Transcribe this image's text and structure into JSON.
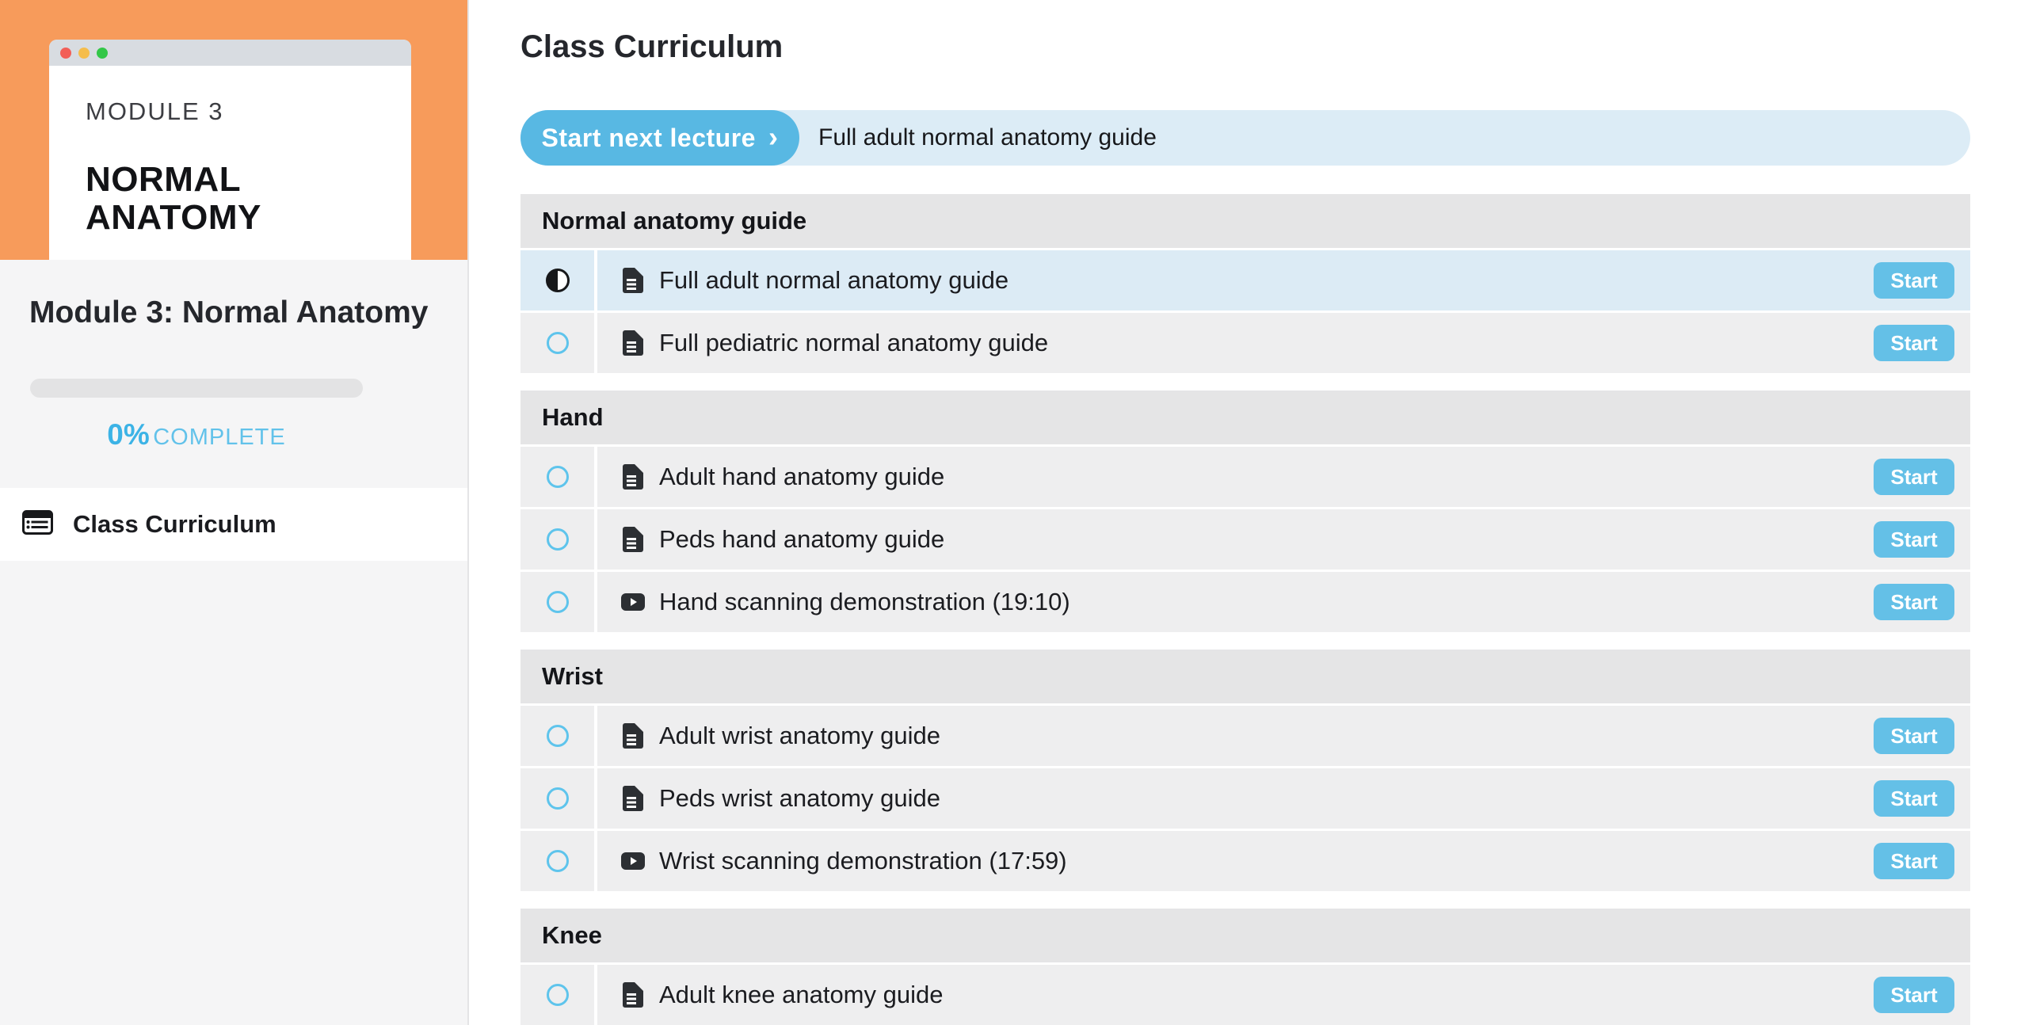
{
  "colors": {
    "sidebar_orange": "#f79b5b",
    "accent_blue": "#58b8e3",
    "start_button_blue": "#64c0e7",
    "banner_blue": "#dcecf6",
    "selected_row_blue": "#dcebf5"
  },
  "sidebar": {
    "card": {
      "eyebrow": "MODULE 3",
      "title_lines": [
        "NORMAL",
        "ANATOMY"
      ]
    },
    "module_title": "Module 3: Normal Anatomy",
    "progress": {
      "percent": "0%",
      "label": "COMPLETE",
      "value": 0
    },
    "nav": {
      "curriculum_label": "Class Curriculum"
    }
  },
  "main": {
    "title": "Class Curriculum",
    "next_lecture": {
      "button_label": "Start next lecture",
      "chevron": "›",
      "lecture_title": "Full adult normal anatomy guide"
    },
    "start_label": "Start",
    "sections": [
      {
        "title": "Normal anatomy guide",
        "items": [
          {
            "title": "Full adult normal anatomy guide",
            "type": "document",
            "state": "in_progress",
            "selected": true
          },
          {
            "title": "Full pediatric normal anatomy guide",
            "type": "document",
            "state": "not_started",
            "selected": false
          }
        ]
      },
      {
        "title": "Hand",
        "items": [
          {
            "title": "Adult hand anatomy guide",
            "type": "document",
            "state": "not_started",
            "selected": false
          },
          {
            "title": "Peds hand anatomy guide",
            "type": "document",
            "state": "not_started",
            "selected": false
          },
          {
            "title": "Hand scanning demonstration (19:10)",
            "type": "video",
            "state": "not_started",
            "selected": false
          }
        ]
      },
      {
        "title": "Wrist",
        "items": [
          {
            "title": "Adult wrist anatomy guide",
            "type": "document",
            "state": "not_started",
            "selected": false
          },
          {
            "title": "Peds wrist anatomy guide",
            "type": "document",
            "state": "not_started",
            "selected": false
          },
          {
            "title": "Wrist scanning demonstration (17:59)",
            "type": "video",
            "state": "not_started",
            "selected": false
          }
        ]
      },
      {
        "title": "Knee",
        "items": [
          {
            "title": "Adult knee anatomy guide",
            "type": "document",
            "state": "not_started",
            "selected": false
          }
        ]
      }
    ]
  }
}
